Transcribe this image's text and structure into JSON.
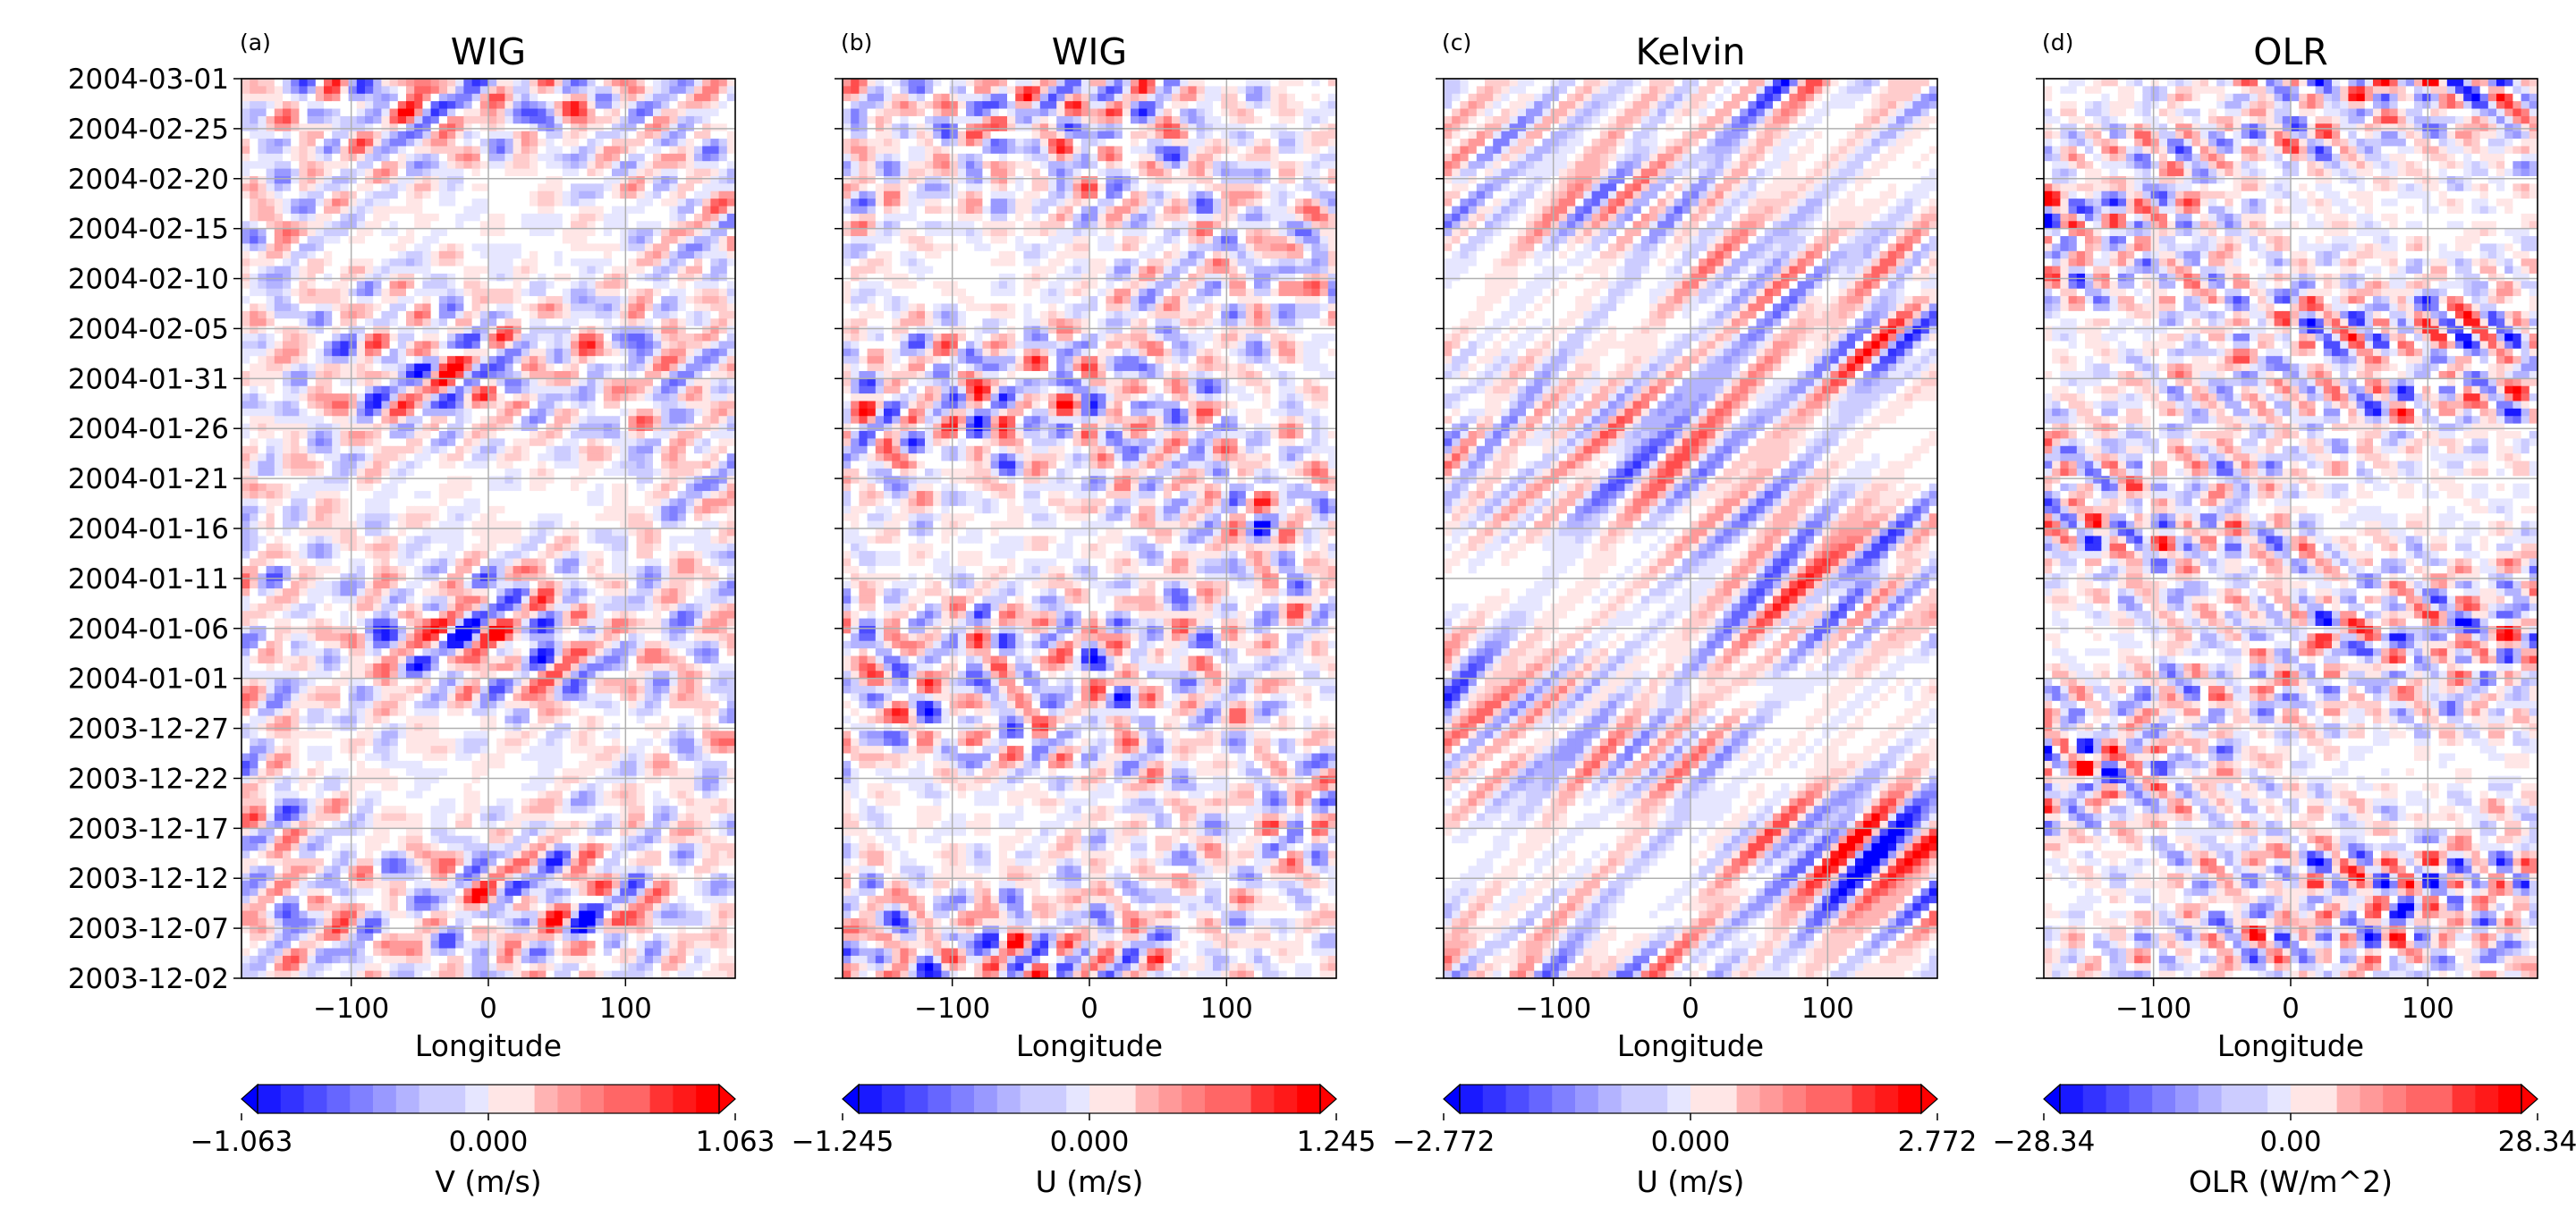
{
  "figure": {
    "y_tick_labels": [
      "2004-03-01",
      "2004-02-25",
      "2004-02-20",
      "2004-02-15",
      "2004-02-10",
      "2004-02-05",
      "2004-01-31",
      "2004-01-26",
      "2004-01-21",
      "2004-01-16",
      "2004-01-11",
      "2004-01-06",
      "2004-01-01",
      "2003-12-27",
      "2003-12-22",
      "2003-12-17",
      "2003-12-12",
      "2003-12-07",
      "2003-12-02"
    ]
  },
  "chart_data": [
    {
      "type": "heatmap",
      "panel_label": "(a)",
      "title": "WIG",
      "xlabel": "Longitude",
      "ylabel": "",
      "xlim": [
        -180,
        180
      ],
      "x_ticks": [
        -100,
        0,
        100
      ],
      "x_tick_labels": [
        "−100",
        "0",
        "100"
      ],
      "ylim": [
        "2003-12-02",
        "2004-03-01"
      ],
      "grid": true,
      "colormap": "bwr",
      "pattern": "mixed",
      "colorbar": {
        "label": "V (m/s)",
        "min": -1.063,
        "max": 1.063,
        "tick_labels": [
          "−1.063",
          "0.000",
          "1.063"
        ],
        "extend": "both"
      }
    },
    {
      "type": "heatmap",
      "panel_label": "(b)",
      "title": "WIG",
      "xlabel": "Longitude",
      "ylabel": "",
      "xlim": [
        -180,
        180
      ],
      "x_ticks": [
        -100,
        0,
        100
      ],
      "x_tick_labels": [
        "−100",
        "0",
        "100"
      ],
      "ylim": [
        "2003-12-02",
        "2004-03-01"
      ],
      "grid": true,
      "colormap": "bwr",
      "pattern": "mixed",
      "colorbar": {
        "label": "U (m/s)",
        "min": -1.245,
        "max": 1.245,
        "tick_labels": [
          "−1.245",
          "0.000",
          "1.245"
        ],
        "extend": "both"
      }
    },
    {
      "type": "heatmap",
      "panel_label": "(c)",
      "title": "Kelvin",
      "xlabel": "Longitude",
      "ylabel": "",
      "xlim": [
        -180,
        180
      ],
      "x_ticks": [
        -100,
        0,
        100
      ],
      "x_tick_labels": [
        "−100",
        "0",
        "100"
      ],
      "ylim": [
        "2003-12-02",
        "2004-03-01"
      ],
      "grid": true,
      "colormap": "bwr",
      "pattern": "eastward",
      "colorbar": {
        "label": "U (m/s)",
        "min": -2.772,
        "max": 2.772,
        "tick_labels": [
          "−2.772",
          "0.000",
          "2.772"
        ],
        "extend": "both"
      }
    },
    {
      "type": "heatmap",
      "panel_label": "(d)",
      "title": "OLR",
      "xlabel": "Longitude",
      "ylabel": "",
      "xlim": [
        -180,
        180
      ],
      "x_ticks": [
        -100,
        0,
        100
      ],
      "x_tick_labels": [
        "−100",
        "0",
        "100"
      ],
      "ylim": [
        "2003-12-02",
        "2004-03-01"
      ],
      "grid": true,
      "colormap": "bwr",
      "pattern": "mixed",
      "colorbar": {
        "label": "OLR (W/m^2)",
        "min": -28.34,
        "max": 28.34,
        "tick_labels": [
          "−28.34",
          "0.00",
          "28.34"
        ],
        "extend": "both"
      }
    }
  ]
}
